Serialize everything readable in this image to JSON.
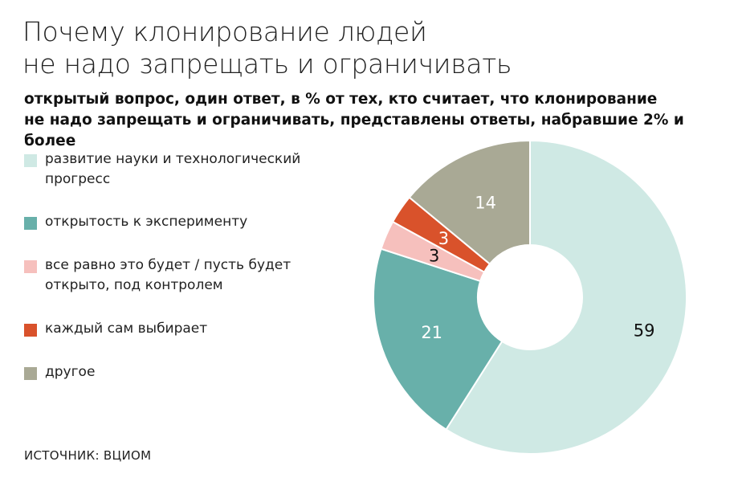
{
  "header": {
    "title_line1": "Почему клонирование людей",
    "title_line2": "не надо запрещать и ограничивать",
    "subtitle_line1": "открытый вопрос, один ответ, в % от тех, кто считает, что клонирование",
    "subtitle_line2": "не надо запрещать и ограничивать, представлены ответы, набравшие 2% и более"
  },
  "legend": {
    "items": [
      {
        "label_line1": "развитие науки и технологический",
        "label_line2": "прогресс",
        "color": "#cfe9e4"
      },
      {
        "label_line1": "открытость к эксперименту",
        "label_line2": "",
        "color": "#68b0aa"
      },
      {
        "label_line1": "все равно это будет / пусть будет",
        "label_line2": "открыто, под контролем",
        "color": "#f6c0bd"
      },
      {
        "label_line1": "каждый сам выбирает",
        "label_line2": "",
        "color": "#d9522b"
      },
      {
        "label_line1": "другое",
        "label_line2": "",
        "color": "#a9a995"
      }
    ]
  },
  "footer": {
    "source": "ИСТОЧНИК: ВЦИОМ"
  },
  "chart_data": {
    "type": "pie",
    "donut": true,
    "categories": [
      "развитие науки и технологический прогресс",
      "открытость к эксперименту",
      "все равно это будет / пусть будет открыто, под контролем",
      "каждый сам выбирает",
      "другое"
    ],
    "values": [
      59,
      21,
      3,
      3,
      14
    ],
    "value_labels": [
      "59",
      "21",
      "3",
      "3",
      "14"
    ],
    "colors": [
      "#cfe9e4",
      "#68b0aa",
      "#f6c0bd",
      "#d9522b",
      "#a9a995"
    ],
    "label_colors": [
      "#111111",
      "#ffffff",
      "#111111",
      "#ffffff",
      "#ffffff"
    ],
    "start": "top",
    "direction": "clockwise",
    "legend_position": "left"
  }
}
